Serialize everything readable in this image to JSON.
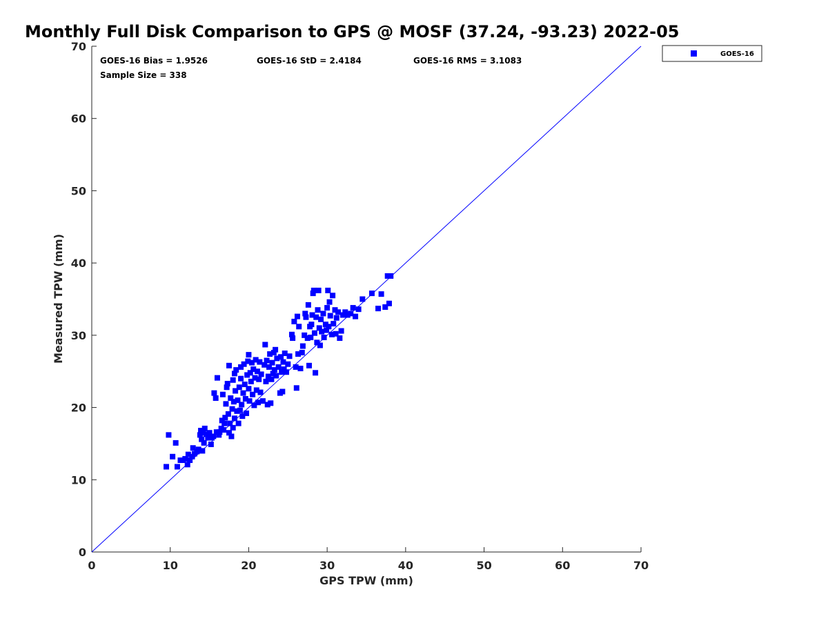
{
  "chart_data": {
    "type": "scatter",
    "title": "Monthly Full Disk Comparison to GPS @ MOSF (37.24, -93.23) 2022-05",
    "xlabel": "GPS TPW (mm)",
    "ylabel": "Measured TPW (mm)",
    "xlim": [
      0,
      70
    ],
    "ylim": [
      0,
      70
    ],
    "xticks": [
      "0",
      "10",
      "20",
      "30",
      "40",
      "50",
      "60",
      "70"
    ],
    "yticks": [
      "0",
      "10",
      "20",
      "30",
      "40",
      "50",
      "60",
      "70"
    ],
    "grid": false,
    "legend_position": "outside-top-right",
    "stats": {
      "bias": "GOES-16 Bias = 1.9526",
      "std": "GOES-16 StD = 2.4184",
      "rms": "GOES-16 RMS = 3.1083",
      "sample": "Sample Size = 338"
    },
    "reference_line": {
      "name": "1:1 line",
      "from": [
        0,
        0
      ],
      "to": [
        70,
        70
      ],
      "color": "#0000ff"
    },
    "series": [
      {
        "name": "GOES-16",
        "color": "#0000ff",
        "marker": "square",
        "points": [
          [
            9.5,
            11.8
          ],
          [
            9.8,
            16.2
          ],
          [
            10.3,
            13.2
          ],
          [
            10.7,
            15.1
          ],
          [
            10.9,
            11.8
          ],
          [
            11.3,
            12.7
          ],
          [
            11.6,
            12.7
          ],
          [
            11.9,
            12.9
          ],
          [
            12.2,
            12.1
          ],
          [
            12.3,
            13.5
          ],
          [
            12.5,
            12.7
          ],
          [
            12.8,
            13.2
          ],
          [
            12.9,
            14.4
          ],
          [
            13.1,
            13.6
          ],
          [
            13.4,
            13.9
          ],
          [
            13.6,
            14.2
          ],
          [
            13.8,
            16.2
          ],
          [
            13.9,
            16.8
          ],
          [
            14.0,
            15.6
          ],
          [
            14.1,
            14.0
          ],
          [
            14.2,
            16.5
          ],
          [
            14.3,
            15.1
          ],
          [
            14.4,
            17.1
          ],
          [
            14.6,
            16.3
          ],
          [
            14.8,
            15.8
          ],
          [
            15.0,
            16.5
          ],
          [
            15.2,
            14.9
          ],
          [
            15.3,
            15.8
          ],
          [
            15.5,
            16.0
          ],
          [
            15.6,
            22.0
          ],
          [
            15.8,
            21.3
          ],
          [
            15.9,
            16.6
          ],
          [
            16.0,
            24.1
          ],
          [
            16.2,
            16.2
          ],
          [
            16.3,
            16.6
          ],
          [
            16.5,
            17.1
          ],
          [
            16.6,
            18.2
          ],
          [
            16.7,
            21.8
          ],
          [
            16.8,
            16.9
          ],
          [
            16.9,
            17.8
          ],
          [
            17.0,
            18.6
          ],
          [
            17.1,
            20.5
          ],
          [
            17.2,
            22.8
          ],
          [
            17.3,
            23.3
          ],
          [
            17.4,
            19.1
          ],
          [
            17.5,
            16.5
          ],
          [
            17.5,
            25.8
          ],
          [
            17.6,
            17.8
          ],
          [
            17.7,
            21.3
          ],
          [
            17.8,
            16.0
          ],
          [
            17.9,
            19.8
          ],
          [
            18.0,
            23.8
          ],
          [
            18.0,
            17.2
          ],
          [
            18.1,
            20.8
          ],
          [
            18.2,
            24.7
          ],
          [
            18.2,
            18.5
          ],
          [
            18.3,
            22.3
          ],
          [
            18.4,
            25.2
          ],
          [
            18.5,
            19.5
          ],
          [
            18.6,
            21.0
          ],
          [
            18.7,
            17.8
          ],
          [
            18.8,
            22.8
          ],
          [
            18.9,
            19.6
          ],
          [
            19.0,
            24.0
          ],
          [
            19.0,
            25.6
          ],
          [
            19.1,
            20.4
          ],
          [
            19.2,
            18.8
          ],
          [
            19.3,
            22.0
          ],
          [
            19.4,
            26.0
          ],
          [
            19.5,
            23.2
          ],
          [
            19.6,
            21.2
          ],
          [
            19.7,
            19.2
          ],
          [
            19.8,
            24.5
          ],
          [
            19.9,
            26.4
          ],
          [
            20.0,
            22.6
          ],
          [
            20.0,
            27.3
          ],
          [
            20.1,
            20.9
          ],
          [
            20.2,
            24.8
          ],
          [
            20.3,
            23.6
          ],
          [
            20.4,
            26.2
          ],
          [
            20.5,
            21.8
          ],
          [
            20.6,
            25.3
          ],
          [
            20.7,
            20.3
          ],
          [
            20.8,
            24.1
          ],
          [
            20.9,
            26.6
          ],
          [
            21.0,
            22.4
          ],
          [
            21.1,
            25.0
          ],
          [
            21.2,
            20.7
          ],
          [
            21.3,
            23.9
          ],
          [
            21.4,
            26.3
          ],
          [
            21.5,
            22.1
          ],
          [
            21.6,
            24.6
          ],
          [
            21.8,
            20.9
          ],
          [
            22.0,
            25.9
          ],
          [
            22.1,
            28.7
          ],
          [
            22.2,
            23.6
          ],
          [
            22.3,
            26.5
          ],
          [
            22.4,
            20.4
          ],
          [
            22.5,
            24.3
          ],
          [
            22.6,
            25.6
          ],
          [
            22.7,
            27.4
          ],
          [
            22.8,
            20.6
          ],
          [
            22.9,
            23.9
          ],
          [
            23.0,
            26.2
          ],
          [
            23.1,
            24.7
          ],
          [
            23.2,
            27.6
          ],
          [
            23.3,
            25.2
          ],
          [
            23.4,
            28.0
          ],
          [
            23.5,
            24.4
          ],
          [
            23.6,
            26.8
          ],
          [
            23.8,
            25.6
          ],
          [
            24.0,
            22.0
          ],
          [
            24.1,
            27.0
          ],
          [
            24.2,
            24.9
          ],
          [
            24.3,
            22.2
          ],
          [
            24.4,
            26.3
          ],
          [
            24.5,
            25.3
          ],
          [
            24.6,
            27.5
          ],
          [
            24.8,
            24.9
          ],
          [
            25.0,
            26.0
          ],
          [
            25.2,
            27.1
          ],
          [
            25.5,
            30.1
          ],
          [
            25.6,
            29.6
          ],
          [
            25.8,
            31.9
          ],
          [
            26.0,
            25.6
          ],
          [
            26.1,
            22.7
          ],
          [
            26.2,
            32.6
          ],
          [
            26.3,
            27.4
          ],
          [
            26.4,
            31.2
          ],
          [
            26.6,
            25.4
          ],
          [
            26.8,
            27.6
          ],
          [
            26.9,
            28.5
          ],
          [
            27.1,
            30.0
          ],
          [
            27.2,
            33.0
          ],
          [
            27.3,
            32.5
          ],
          [
            27.5,
            29.6
          ],
          [
            27.6,
            34.2
          ],
          [
            27.7,
            25.8
          ],
          [
            27.8,
            31.2
          ],
          [
            27.9,
            29.7
          ],
          [
            28.0,
            31.5
          ],
          [
            28.1,
            32.8
          ],
          [
            28.2,
            35.8
          ],
          [
            28.3,
            36.2
          ],
          [
            28.4,
            30.3
          ],
          [
            28.5,
            24.8
          ],
          [
            28.6,
            32.5
          ],
          [
            28.7,
            29.0
          ],
          [
            28.8,
            33.5
          ],
          [
            28.9,
            36.2
          ],
          [
            29.0,
            31.0
          ],
          [
            29.1,
            28.6
          ],
          [
            29.2,
            32.2
          ],
          [
            29.3,
            30.5
          ],
          [
            29.5,
            33.0
          ],
          [
            29.6,
            29.7
          ],
          [
            29.8,
            31.5
          ],
          [
            29.9,
            30.7
          ],
          [
            30.0,
            33.8
          ],
          [
            30.1,
            36.2
          ],
          [
            30.2,
            31.2
          ],
          [
            30.3,
            34.6
          ],
          [
            30.4,
            32.7
          ],
          [
            30.6,
            30.1
          ],
          [
            30.7,
            35.5
          ],
          [
            30.8,
            31.6
          ],
          [
            31.0,
            33.5
          ],
          [
            31.1,
            30.2
          ],
          [
            31.2,
            32.4
          ],
          [
            31.4,
            33.2
          ],
          [
            31.6,
            29.6
          ],
          [
            31.8,
            30.6
          ],
          [
            32.0,
            32.8
          ],
          [
            32.3,
            33.2
          ],
          [
            32.6,
            32.8
          ],
          [
            33.0,
            33.0
          ],
          [
            33.3,
            33.8
          ],
          [
            33.6,
            32.6
          ],
          [
            34.0,
            33.6
          ],
          [
            34.5,
            35.0
          ],
          [
            35.7,
            35.8
          ],
          [
            36.5,
            33.7
          ],
          [
            36.9,
            35.7
          ],
          [
            37.4,
            33.9
          ],
          [
            37.7,
            38.2
          ],
          [
            37.9,
            34.4
          ],
          [
            38.1,
            38.2
          ]
        ]
      }
    ]
  }
}
